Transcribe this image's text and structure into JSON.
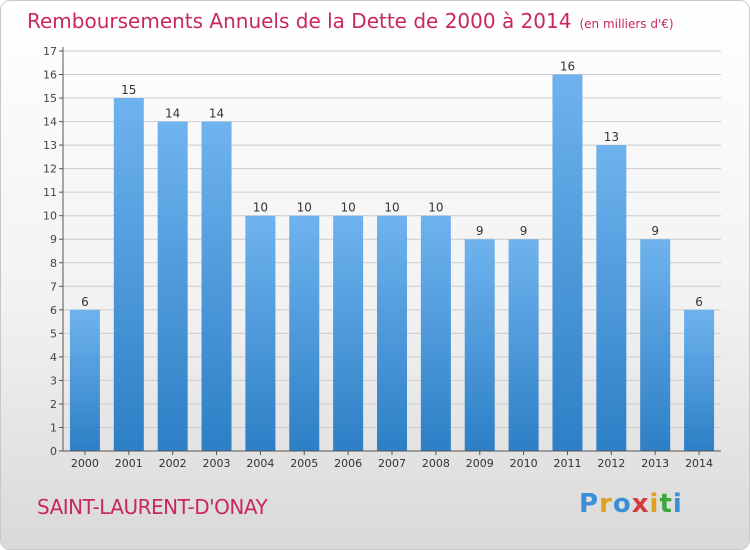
{
  "title": "Remboursements Annuels de la Dette de 2000 à 2014",
  "unit": "(en milliers d'€)",
  "commune": "SAINT-LAURENT-D'ONAY",
  "logo": {
    "letters": [
      "P",
      "r",
      "o",
      "x",
      "i",
      "t",
      "i"
    ],
    "colors": [
      "#3a8fd6",
      "#e0a020",
      "#3a8fd6",
      "#d63a3a",
      "#e0a020",
      "#3aa83a",
      "#3a8fd6"
    ]
  },
  "colors": {
    "bar_top": "#6fb3ee",
    "bar_bottom": "#2d7fc6",
    "accent": "#c8285a",
    "grid": "#cccccc"
  },
  "chart_data": {
    "type": "bar",
    "title": "Remboursements Annuels de la Dette de 2000 à 2014",
    "categories": [
      "2000",
      "2001",
      "2002",
      "2003",
      "2004",
      "2005",
      "2006",
      "2007",
      "2008",
      "2009",
      "2010",
      "2011",
      "2012",
      "2013",
      "2014"
    ],
    "values": [
      6,
      15,
      14,
      14,
      10,
      10,
      10,
      10,
      10,
      9,
      9,
      16,
      13,
      9,
      6
    ],
    "ylim": [
      0,
      17
    ],
    "yticks": [
      0,
      1,
      2,
      3,
      4,
      5,
      6,
      7,
      8,
      9,
      10,
      11,
      12,
      13,
      14,
      15,
      16,
      17
    ],
    "grid": true,
    "legend": "none"
  }
}
